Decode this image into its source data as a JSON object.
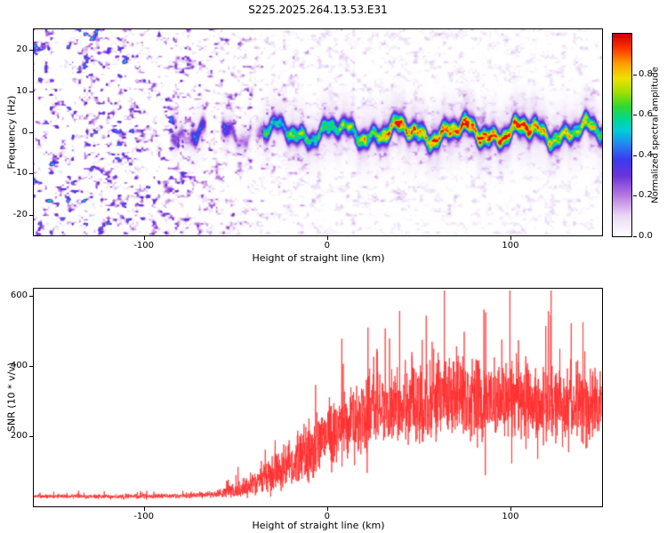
{
  "chart_data": [
    {
      "type": "heatmap",
      "title": "S225.2025.264.13.53.E31",
      "xlabel": "Height of straight line (km)",
      "ylabel": "Frequency (Hz)",
      "xlim": [
        -160,
        150
      ],
      "ylim": [
        -25,
        25
      ],
      "xticks": [
        -100,
        0,
        100
      ],
      "yticks": [
        -20,
        -10,
        0,
        10,
        20
      ],
      "grid": false,
      "colorbar": {
        "label": "Normalized spectral amplitude",
        "range": [
          0,
          1
        ],
        "ticks": [
          0,
          0.2,
          0.4,
          0.6,
          0.8
        ]
      },
      "colormap": [
        [
          0.0,
          "#ffffff"
        ],
        [
          0.1,
          "#ead9f5"
        ],
        [
          0.2,
          "#b77ae0"
        ],
        [
          0.3,
          "#6a33d9"
        ],
        [
          0.38,
          "#3b3bee"
        ],
        [
          0.46,
          "#1f8cf0"
        ],
        [
          0.52,
          "#00ccd8"
        ],
        [
          0.58,
          "#00d890"
        ],
        [
          0.64,
          "#30d830"
        ],
        [
          0.71,
          "#a0e000"
        ],
        [
          0.78,
          "#f0e000"
        ],
        [
          0.85,
          "#ffa000"
        ],
        [
          0.93,
          "#ff3000"
        ],
        [
          1.0,
          "#c80000"
        ]
      ],
      "signal_band": {
        "description": "Horizontal meteor-echo band near 0 Hz: patchy blue-cyan blobs from -95 to -35 km, continuous cyan-green band from -35 km onward with yellow/red core between 30 and 115 km",
        "center_frequency_hz": 0,
        "amplitude_vs_x": [
          [
            -160,
            0
          ],
          [
            -98,
            0
          ],
          [
            -92,
            0.3
          ],
          [
            -80,
            0.42
          ],
          [
            -65,
            0.45
          ],
          [
            -50,
            0.5
          ],
          [
            -35,
            0.52
          ],
          [
            -20,
            0.56
          ],
          [
            0,
            0.6
          ],
          [
            20,
            0.66
          ],
          [
            35,
            0.74
          ],
          [
            60,
            0.8
          ],
          [
            90,
            0.8
          ],
          [
            110,
            0.74
          ],
          [
            130,
            0.68
          ],
          [
            150,
            0.68
          ]
        ],
        "center_wander": {
          "amplitudes": [
            1.7,
            1.0,
            0.55
          ],
          "wavelengths": [
            34,
            13,
            5.5
          ],
          "phases": [
            0.5,
            2.1,
            4.2
          ]
        },
        "core_sigma_hz": 1.4,
        "halo_sigma_hz": 4.5
      },
      "background_noise": {
        "description": "Dense purple speckle noise over all frequencies on the left side, fading to sparse pale lavender speckle right of 0 km",
        "amplitude_vs_x": [
          [
            -160,
            1.0
          ],
          [
            -120,
            0.95
          ],
          [
            -90,
            0.8
          ],
          [
            -60,
            0.6
          ],
          [
            -40,
            0.45
          ],
          [
            -20,
            0.32
          ],
          [
            0,
            0.26
          ],
          [
            40,
            0.24
          ],
          [
            150,
            0.22
          ]
        ]
      },
      "seed": 42
    },
    {
      "type": "line",
      "xlabel": "Height of straight line (km)",
      "ylabel": "SNR (10 * v/v)",
      "xlim": [
        -160,
        150
      ],
      "ylim": [
        0,
        620
      ],
      "xticks": [
        -100,
        0,
        100
      ],
      "yticks": [
        200,
        400,
        600
      ],
      "color": "#ff2d2d",
      "samples": 2800,
      "envelope_mean": [
        [
          -160,
          28
        ],
        [
          -120,
          28
        ],
        [
          -80,
          30
        ],
        [
          -60,
          34
        ],
        [
          -50,
          45
        ],
        [
          -40,
          65
        ],
        [
          -30,
          95
        ],
        [
          -20,
          125
        ],
        [
          -10,
          160
        ],
        [
          0,
          205
        ],
        [
          10,
          240
        ],
        [
          20,
          265
        ],
        [
          30,
          285
        ],
        [
          50,
          300
        ],
        [
          70,
          310
        ],
        [
          90,
          300
        ],
        [
          110,
          295
        ],
        [
          130,
          285
        ],
        [
          150,
          295
        ]
      ],
      "noise_halfrange": [
        [
          -160,
          7
        ],
        [
          -80,
          8
        ],
        [
          -60,
          12
        ],
        [
          -50,
          25
        ],
        [
          -40,
          45
        ],
        [
          -30,
          65
        ],
        [
          -20,
          85
        ],
        [
          -10,
          100
        ],
        [
          0,
          115
        ],
        [
          20,
          130
        ],
        [
          40,
          140
        ],
        [
          150,
          140
        ]
      ],
      "seed": 7
    }
  ]
}
